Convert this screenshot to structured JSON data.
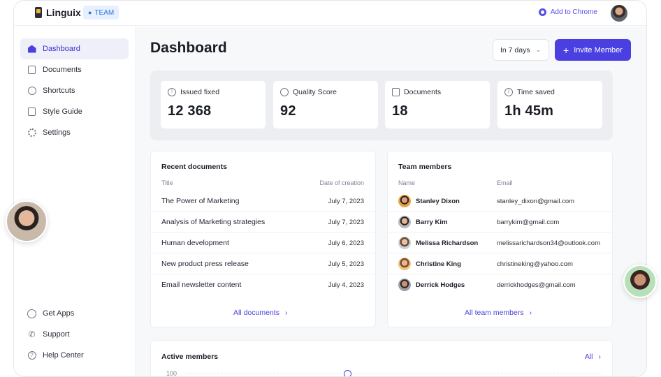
{
  "topbar": {
    "brand": "Linguix",
    "team_badge": "TEAM",
    "add_to_chrome": "Add to Chrome"
  },
  "sidebar": {
    "items": [
      {
        "label": "Dashboard",
        "icon": "home-icon"
      },
      {
        "label": "Documents",
        "icon": "document-icon"
      },
      {
        "label": "Shortcuts",
        "icon": "shortcut-icon"
      },
      {
        "label": "Style Guide",
        "icon": "style-guide-icon"
      },
      {
        "label": "Settings",
        "icon": "gear-icon"
      }
    ],
    "bottom_items": [
      {
        "label": "Get Apps",
        "icon": "globe-icon"
      },
      {
        "label": "Support",
        "icon": "phone-icon"
      },
      {
        "label": "Help Center",
        "icon": "help-icon"
      }
    ]
  },
  "main": {
    "title": "Dashboard",
    "range_select": "In 7 days",
    "invite_button": "Invite Member",
    "stats": [
      {
        "label": "Issued fixed",
        "value": "12 368"
      },
      {
        "label": "Quality Score",
        "value": "92"
      },
      {
        "label": "Documents",
        "value": "18"
      },
      {
        "label": "Time saved",
        "value": "1h 45m"
      }
    ],
    "recent_documents": {
      "title": "Recent documents",
      "col_title": "Title",
      "col_date": "Date of creation",
      "rows": [
        {
          "title": "The Power of Marketing",
          "date": "July 7, 2023"
        },
        {
          "title": "Analysis of Marketing strategies",
          "date": "July 7, 2023"
        },
        {
          "title": "Human development",
          "date": "July 6, 2023"
        },
        {
          "title": "New product press release",
          "date": "July 5, 2023"
        },
        {
          "title": "Email newsletter content",
          "date": "July 4, 2023"
        }
      ],
      "link": "All documents"
    },
    "team_members": {
      "title": "Team members",
      "col_name": "Name",
      "col_email": "Email",
      "rows": [
        {
          "name": "Stanley Dixon",
          "email": "stanley_dixon@gmail.com"
        },
        {
          "name": "Barry Kim",
          "email": "barrykim@gmail.com"
        },
        {
          "name": "Melissa Richardson",
          "email": "melissarichardson34@outlook.com"
        },
        {
          "name": "Christine King",
          "email": "christineking@yahoo.com"
        },
        {
          "name": "Derrick Hodges",
          "email": "derrickhodges@gmail.com"
        }
      ],
      "link": "All team members"
    },
    "active_members": {
      "title": "Active members",
      "link": "All",
      "y_tick": "100"
    }
  },
  "colors": {
    "accent": "#4a3fe0",
    "background": "#f7f8fa"
  }
}
